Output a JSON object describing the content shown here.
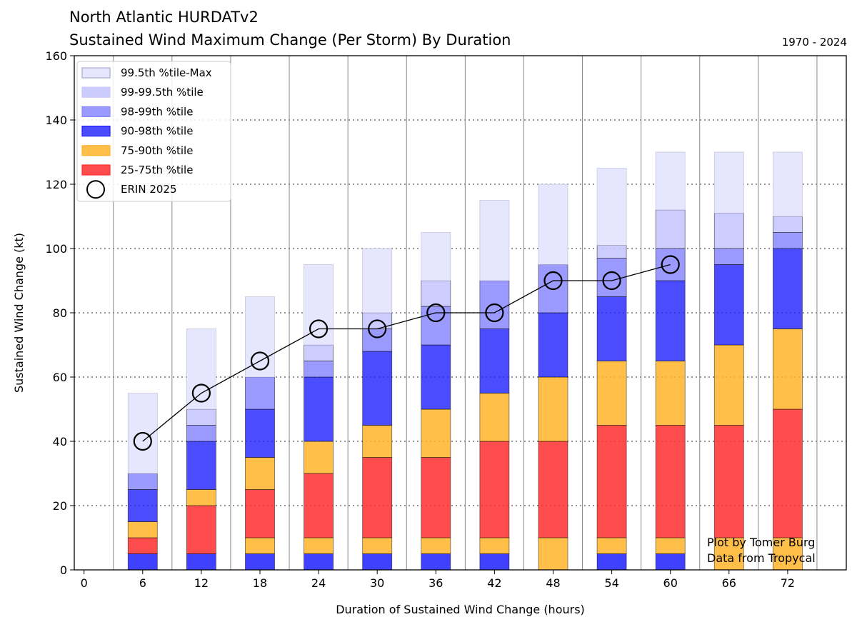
{
  "header": {
    "title_line1": "North Atlantic HURDATv2",
    "title_line2": "Sustained Wind Maximum Change (Per Storm) By Duration",
    "date_range": "1970 - 2024"
  },
  "credits": {
    "line1": "Plot by Tomer Burg",
    "line2": "Data from Tropycal"
  },
  "chart_data": {
    "type": "bar",
    "stacked": true,
    "xlabel": "Duration of Sustained Wind Change (hours)",
    "ylabel": "Sustained Wind Change (kt)",
    "xlim": [
      -1,
      78
    ],
    "ylim": [
      0,
      160
    ],
    "xticks": [
      0,
      6,
      12,
      18,
      24,
      30,
      36,
      42,
      48,
      54,
      60,
      66,
      72
    ],
    "yticks": [
      0,
      20,
      40,
      60,
      80,
      100,
      120,
      140,
      160
    ],
    "grid": "horizontal dotted + vertical solid",
    "legend_position": "top-left",
    "x": [
      6,
      12,
      18,
      24,
      30,
      36,
      42,
      48,
      54,
      60,
      66,
      72
    ],
    "bands": [
      {
        "name": "25-75th %tile",
        "color": "#ff3333",
        "opacity": 0.88,
        "low": [
          5,
          5,
          10,
          10,
          10,
          10,
          10,
          10,
          10,
          10,
          10,
          10
        ],
        "high": [
          10,
          20,
          25,
          30,
          35,
          35,
          40,
          40,
          45,
          45,
          45,
          50
        ]
      },
      {
        "name": "75-90th %tile",
        "color": "#ffb429",
        "opacity": 0.85,
        "low": [
          10,
          20,
          25,
          30,
          35,
          35,
          40,
          40,
          45,
          45,
          45,
          50
        ],
        "high": [
          15,
          25,
          35,
          40,
          45,
          50,
          55,
          60,
          65,
          65,
          70,
          75
        ]
      },
      {
        "name": "90-98th %tile",
        "color": "#1f1fff",
        "opacity": 0.8,
        "low": [
          15,
          25,
          35,
          40,
          45,
          50,
          55,
          60,
          65,
          65,
          70,
          75
        ],
        "high": [
          25,
          40,
          50,
          60,
          68,
          70,
          75,
          80,
          85,
          90,
          95,
          100
        ]
      },
      {
        "name": "98-99th %tile",
        "color": "#8888ff",
        "opacity": 0.85,
        "low": [
          25,
          40,
          50,
          60,
          68,
          70,
          75,
          80,
          85,
          90,
          95,
          100
        ],
        "high": [
          30,
          45,
          60,
          65,
          75,
          82,
          90,
          95,
          97,
          100,
          100,
          105
        ]
      },
      {
        "name": "99-99.5th %tile",
        "color": "#c6c6ff",
        "opacity": 0.9,
        "low": [
          30,
          45,
          60,
          65,
          75,
          82,
          90,
          95,
          97,
          100,
          100,
          105
        ],
        "high": [
          30,
          50,
          60,
          70,
          80,
          90,
          90,
          95,
          101,
          112,
          111,
          110
        ]
      },
      {
        "name": "99.5th %tile-Max",
        "color": "#e6e6ff",
        "opacity": 1.0,
        "low": [
          30,
          50,
          60,
          70,
          80,
          90,
          90,
          95,
          101,
          112,
          111,
          110
        ],
        "high": [
          55,
          75,
          85,
          95,
          100,
          105,
          115,
          120,
          125,
          130,
          130,
          130
        ]
      }
    ],
    "lower_bands": [
      {
        "name": "",
        "color": "#1f1fff",
        "values_low": [
          0,
          0,
          0,
          0,
          0,
          0,
          0,
          0,
          0,
          0,
          0,
          0
        ],
        "values_high": [
          5,
          5,
          5,
          5,
          5,
          5,
          5,
          0,
          5,
          5,
          0,
          0
        ]
      },
      {
        "name": "",
        "color": "#ffb429",
        "values_low": [
          5,
          5,
          5,
          5,
          5,
          5,
          5,
          0,
          5,
          5,
          0,
          0
        ],
        "values_high": [
          5,
          5,
          10,
          10,
          10,
          10,
          10,
          10,
          10,
          10,
          10,
          10
        ]
      }
    ],
    "storm_series": {
      "name": "ERIN 2025",
      "x": [
        6,
        12,
        18,
        24,
        30,
        36,
        42,
        48,
        54,
        60
      ],
      "y": [
        40,
        55,
        65,
        75,
        75,
        80,
        80,
        90,
        90,
        95
      ]
    },
    "legend": [
      "99.5th %tile-Max",
      "99-99.5th %tile",
      "98-99th %tile",
      "90-98th %tile",
      "75-90th %tile",
      "25-75th %tile",
      "ERIN 2025"
    ]
  }
}
